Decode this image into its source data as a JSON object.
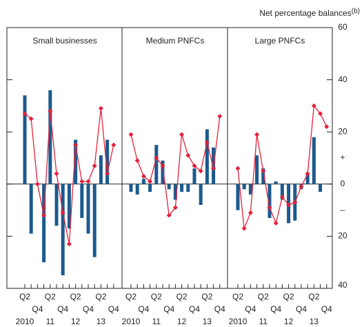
{
  "chart_data": {
    "type": "bar-line",
    "y_axis_label": "Net percentage balances",
    "y_axis_label_note": "(b)",
    "ylim": [
      -40,
      60
    ],
    "yticks": [
      {
        "value": -40,
        "label": "40"
      },
      {
        "value": -20,
        "label": "20"
      },
      0,
      20,
      40,
      60
    ],
    "annotations": [
      "+",
      "–"
    ],
    "categories": [
      "Q2",
      null,
      "Q4",
      null,
      "Q2",
      null,
      "Q4",
      null,
      "Q2",
      null,
      "Q4",
      null,
      "Q2",
      null,
      "Q4"
    ],
    "years": [
      "2010",
      null,
      null,
      null,
      "11",
      null,
      null,
      null,
      "12",
      null,
      null,
      null,
      "13",
      null,
      null
    ],
    "bar_color": "#1b5a8e",
    "line_color": "#e3213b",
    "panels": [
      {
        "title": "Small businesses",
        "bars": [
          34,
          -19,
          0,
          -30,
          36,
          -16,
          -35,
          -17,
          17,
          -13,
          -19,
          -28,
          11,
          17,
          null
        ],
        "line": [
          27,
          25,
          0,
          -12,
          28,
          4,
          -11,
          -23,
          15,
          1,
          1,
          7,
          29,
          4,
          15
        ]
      },
      {
        "title": "Medium PNFCs",
        "bars": [
          -3,
          -4,
          2,
          -3,
          15,
          9,
          -2,
          -6,
          -3,
          -3,
          6,
          -8,
          21,
          14,
          null
        ],
        "line": [
          19,
          9,
          3,
          1,
          10,
          7,
          -12,
          -9,
          19,
          11,
          7,
          5,
          16,
          6,
          26
        ]
      },
      {
        "title": "Large PNFCs",
        "bars": [
          -10,
          -2,
          -4,
          11,
          6,
          -13,
          1,
          -6,
          -15,
          -14,
          -2,
          4,
          18,
          -3,
          null
        ],
        "line": [
          6,
          -17,
          -11,
          19,
          5,
          -9,
          -15,
          -5,
          -8,
          -7,
          -1,
          4,
          30,
          27,
          22
        ]
      }
    ]
  }
}
